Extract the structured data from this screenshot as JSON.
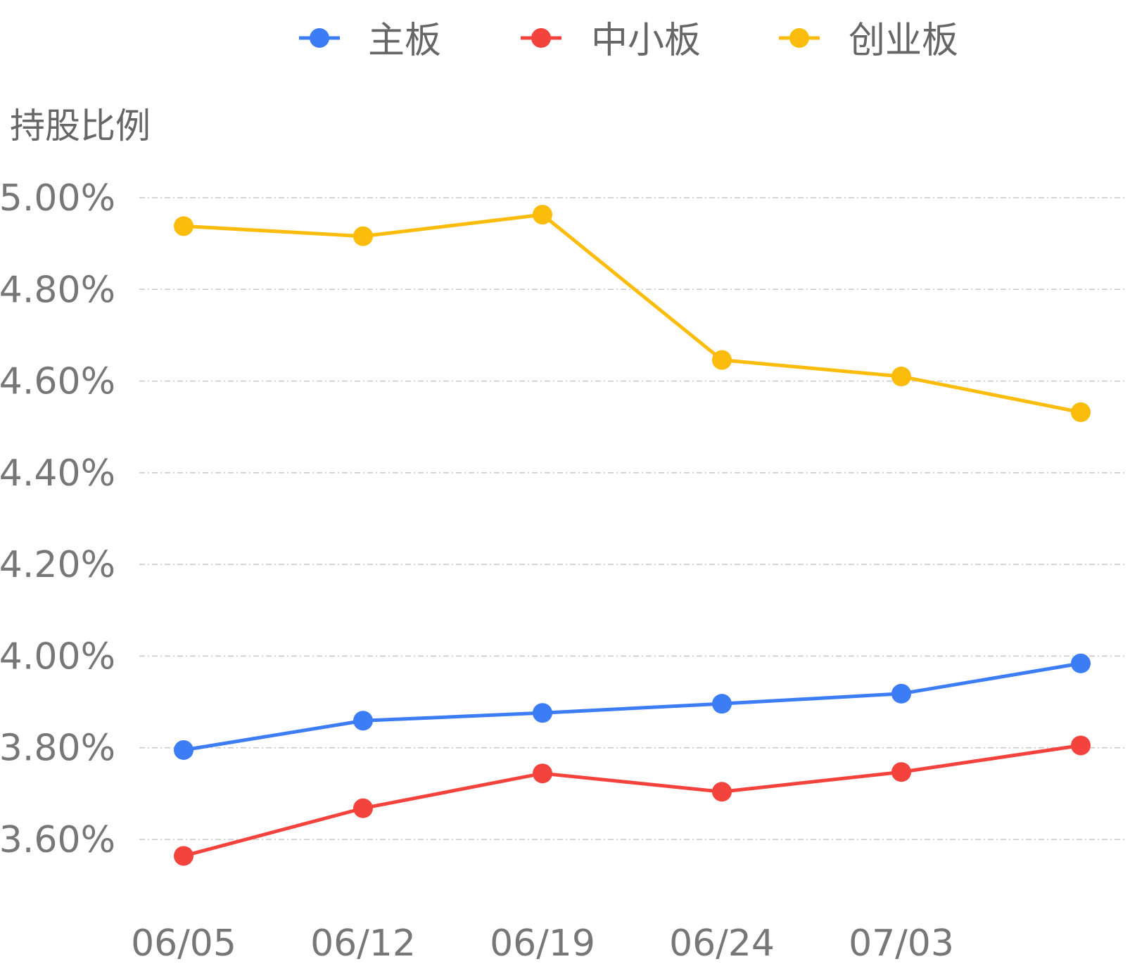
{
  "chart_data": {
    "type": "line",
    "title": "",
    "xlabel": "",
    "ylabel": "持股比例",
    "categories": [
      "06/05",
      "06/12",
      "06/19",
      "06/24",
      "07/03",
      ""
    ],
    "ylim": [
      3.6,
      5.0
    ],
    "yticks": [
      "5.00%",
      "4.80%",
      "4.60%",
      "4.40%",
      "4.20%",
      "4.00%",
      "3.80%",
      "3.60%"
    ],
    "ytick_values": [
      5.0,
      4.8,
      4.6,
      4.4,
      4.2,
      4.0,
      3.8,
      3.6
    ],
    "grid": true,
    "legend_position": "top-center",
    "series": [
      {
        "name": "主板",
        "color": "#3C7DF6",
        "values": [
          3.795,
          3.859,
          3.876,
          3.896,
          3.918,
          3.984
        ]
      },
      {
        "name": "中小板",
        "color": "#F4433D",
        "values": [
          3.564,
          3.668,
          3.744,
          3.704,
          3.747,
          3.805
        ]
      },
      {
        "name": "创业板",
        "color": "#FBBC0B",
        "values": [
          4.938,
          4.916,
          4.963,
          4.646,
          4.61,
          4.532
        ]
      }
    ]
  }
}
